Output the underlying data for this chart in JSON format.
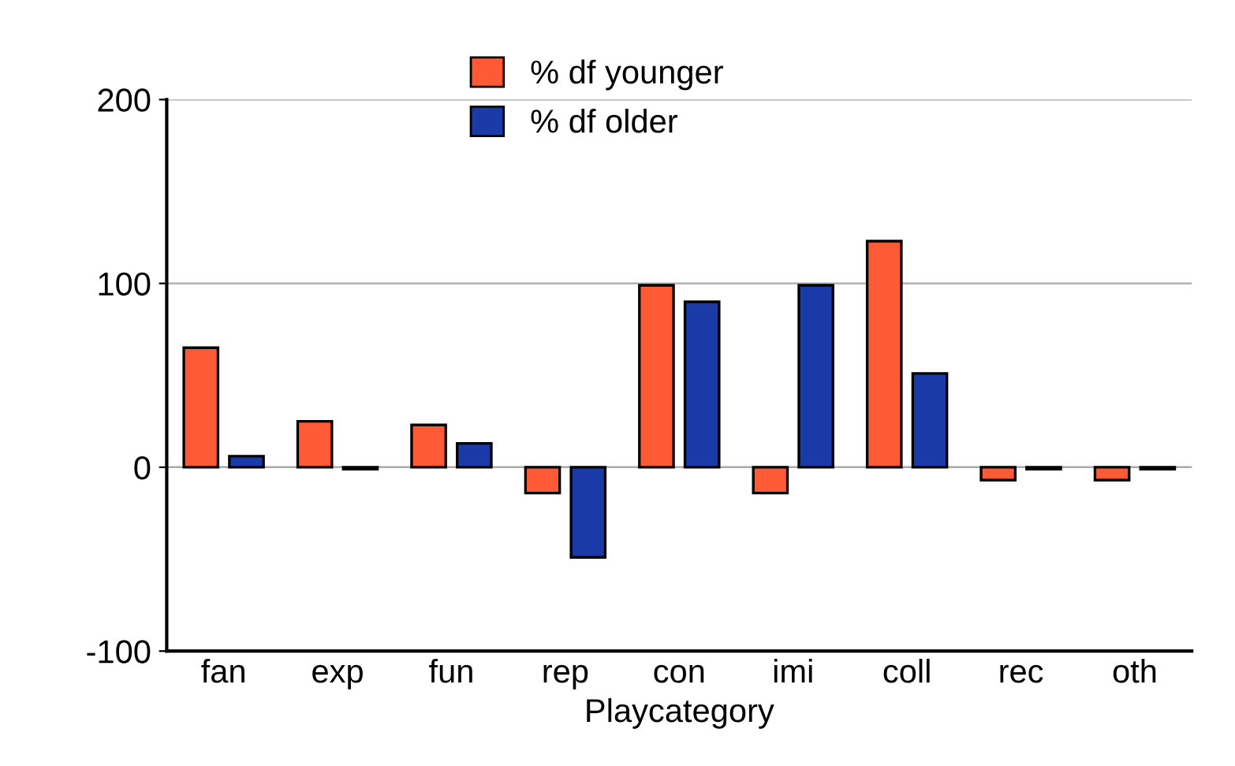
{
  "chart_data": {
    "type": "bar",
    "xlabel": "Playcategory",
    "categories": [
      "fan",
      "exp",
      "fun",
      "rep",
      "con",
      "imi",
      "coll",
      "rec",
      "oth"
    ],
    "series": [
      {
        "name": "% df younger",
        "color": "#ff5a36",
        "values": [
          65,
          25,
          23,
          -14,
          99,
          -14,
          123,
          -7,
          -7
        ]
      },
      {
        "name": "% df older",
        "color": "#1a3aa8",
        "values": [
          6,
          -1,
          13,
          -49,
          90,
          99,
          51,
          -1,
          -1
        ]
      }
    ],
    "ylim": [
      -100,
      200
    ],
    "yticks": [
      -100,
      0,
      100,
      200
    ],
    "grid": "y",
    "legend": "top"
  }
}
